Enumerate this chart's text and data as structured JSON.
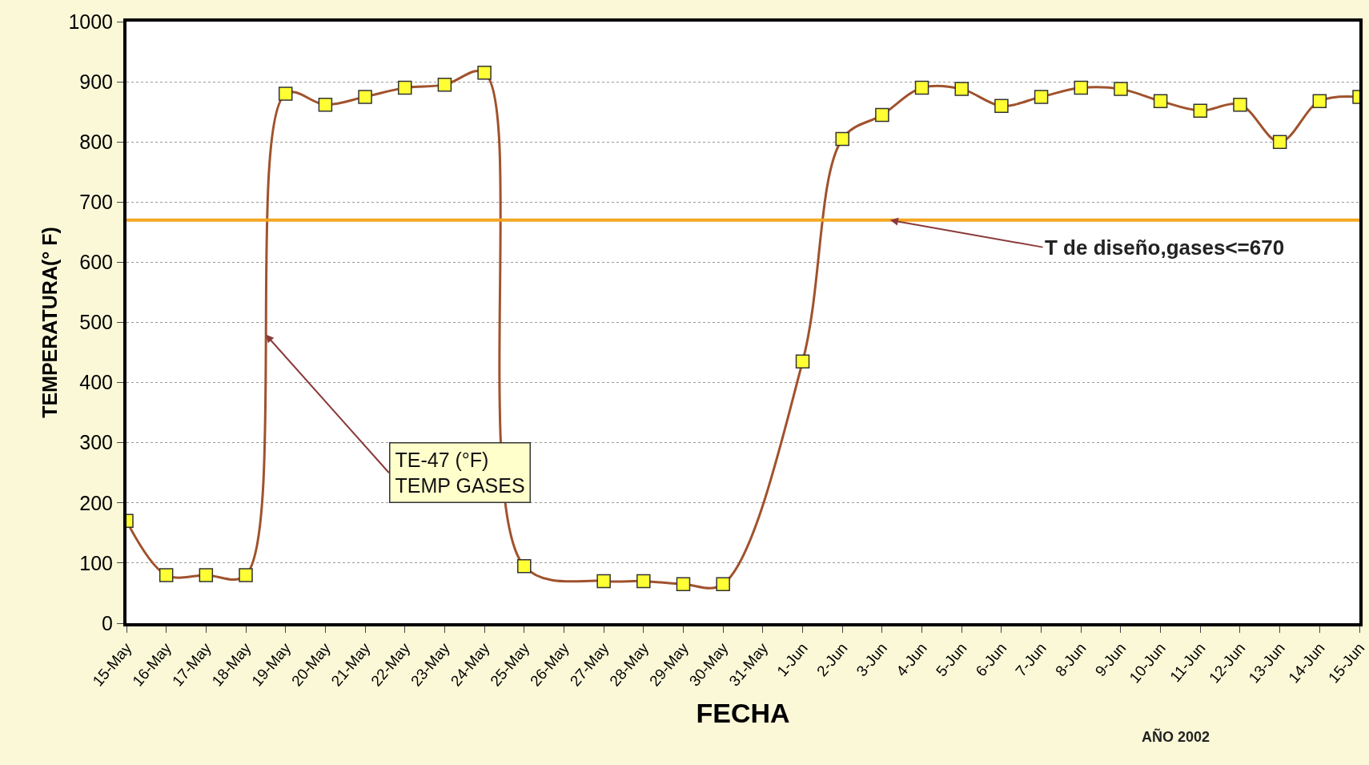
{
  "chart_data": {
    "type": "line",
    "xlabel": "FECHA",
    "ylabel": "TEMPERATURA(° F)",
    "categories": [
      "15-May",
      "16-May",
      "17-May",
      "18-May",
      "19-May",
      "20-May",
      "21-May",
      "22-May",
      "23-May",
      "24-May",
      "25-May",
      "26-May",
      "27-May",
      "28-May",
      "29-May",
      "30-May",
      "31-May",
      "1-Jun",
      "2-Jun",
      "3-Jun",
      "4-Jun",
      "5-Jun",
      "6-Jun",
      "7-Jun",
      "8-Jun",
      "9-Jun",
      "10-Jun",
      "11-Jun",
      "12-Jun",
      "13-Jun",
      "14-Jun",
      "15-Jun"
    ],
    "series": [
      {
        "name": "TE-47 (°F)\nTEMP GASES",
        "color": "#a0522d",
        "values": [
          170,
          80,
          80,
          80,
          880,
          862,
          875,
          890,
          895,
          915,
          95,
          null,
          70,
          70,
          65,
          65,
          null,
          435,
          805,
          845,
          890,
          888,
          860,
          875,
          890,
          888,
          868,
          852,
          862,
          800,
          868,
          875
        ]
      }
    ],
    "ylim": [
      0,
      1000
    ],
    "yticks": [
      0,
      100,
      200,
      300,
      400,
      500,
      600,
      700,
      800,
      900,
      1000
    ],
    "grid": "y",
    "marker": "square",
    "line_style": "solid",
    "ref_lines": [
      {
        "axis": "y",
        "value": 670,
        "label": "T de diseño,gases<=670",
        "color": "#f5a623"
      }
    ],
    "annotations": [
      "AÑO 2002"
    ]
  }
}
